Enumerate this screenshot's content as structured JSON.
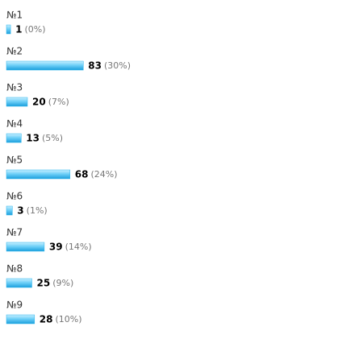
{
  "chart_data": {
    "type": "bar",
    "categories": [
      "№1",
      "№2",
      "№3",
      "№4",
      "№5",
      "№6",
      "№7",
      "№8",
      "№9"
    ],
    "values": [
      1,
      83,
      20,
      13,
      68,
      3,
      39,
      25,
      28
    ],
    "shares": [
      "(0%)",
      "(30%)",
      "(7%)",
      "(5%)",
      "(24%)",
      "(1%)",
      "(14%)",
      "(9%)",
      "(10%)"
    ],
    "color": "#29b3ec"
  }
}
